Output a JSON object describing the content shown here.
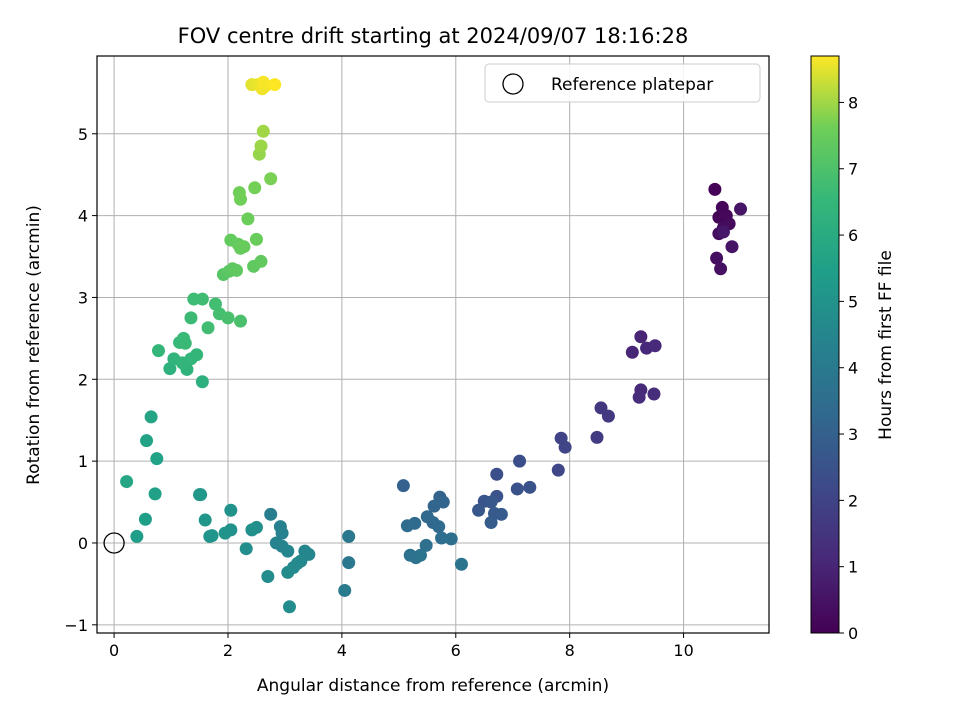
{
  "chart_data": {
    "type": "scatter",
    "title": "FOV centre drift starting at 2024/09/07 18:16:28",
    "xlabel": "Angular distance from reference (arcmin)",
    "ylabel": "Rotation from reference (arcmin)",
    "xlim": [
      -0.3,
      11.5
    ],
    "ylim": [
      -1.1,
      5.95
    ],
    "xticks": [
      0,
      2,
      4,
      6,
      8,
      10
    ],
    "yticks": [
      -1,
      0,
      1,
      2,
      3,
      4,
      5
    ],
    "grid": true,
    "colormap": "viridis",
    "legend": {
      "label": "Reference platepar",
      "position": "top-right"
    },
    "reference_point": {
      "x": 0,
      "y": 0
    },
    "colorbar": {
      "label": "Hours from first FF file",
      "range": [
        0,
        8.7
      ],
      "ticks": [
        0,
        1,
        2,
        3,
        4,
        5,
        6,
        7,
        8
      ]
    },
    "points": [
      {
        "x": 10.55,
        "y": 4.32,
        "c": 0.05
      },
      {
        "x": 10.62,
        "y": 3.98,
        "c": 0.1
      },
      {
        "x": 10.68,
        "y": 4.1,
        "c": 0.15
      },
      {
        "x": 10.75,
        "y": 4.0,
        "c": 0.2
      },
      {
        "x": 10.8,
        "y": 3.9,
        "c": 0.25
      },
      {
        "x": 10.7,
        "y": 3.85,
        "c": 0.3
      },
      {
        "x": 10.62,
        "y": 3.78,
        "c": 0.35
      },
      {
        "x": 10.58,
        "y": 3.48,
        "c": 0.4
      },
      {
        "x": 10.65,
        "y": 3.35,
        "c": 0.45
      },
      {
        "x": 10.85,
        "y": 3.62,
        "c": 0.5
      },
      {
        "x": 11.0,
        "y": 4.08,
        "c": 0.55
      },
      {
        "x": 10.7,
        "y": 3.8,
        "c": 0.6
      },
      {
        "x": 9.25,
        "y": 2.52,
        "c": 1.0
      },
      {
        "x": 9.1,
        "y": 2.33,
        "c": 1.05
      },
      {
        "x": 9.35,
        "y": 2.38,
        "c": 1.1
      },
      {
        "x": 9.5,
        "y": 2.41,
        "c": 1.15
      },
      {
        "x": 9.25,
        "y": 1.87,
        "c": 1.2
      },
      {
        "x": 9.22,
        "y": 1.78,
        "c": 1.25
      },
      {
        "x": 9.48,
        "y": 1.82,
        "c": 1.3
      },
      {
        "x": 8.55,
        "y": 1.65,
        "c": 1.6
      },
      {
        "x": 8.68,
        "y": 1.55,
        "c": 1.65
      },
      {
        "x": 8.48,
        "y": 1.29,
        "c": 1.7
      },
      {
        "x": 7.85,
        "y": 1.28,
        "c": 2.0
      },
      {
        "x": 7.92,
        "y": 1.17,
        "c": 2.05
      },
      {
        "x": 7.8,
        "y": 0.89,
        "c": 2.1
      },
      {
        "x": 7.12,
        "y": 1.0,
        "c": 2.35
      },
      {
        "x": 6.72,
        "y": 0.84,
        "c": 2.4
      },
      {
        "x": 7.08,
        "y": 0.66,
        "c": 2.45
      },
      {
        "x": 7.3,
        "y": 0.68,
        "c": 2.5
      },
      {
        "x": 6.72,
        "y": 0.57,
        "c": 2.55
      },
      {
        "x": 6.5,
        "y": 0.51,
        "c": 2.6
      },
      {
        "x": 6.62,
        "y": 0.5,
        "c": 2.65
      },
      {
        "x": 6.4,
        "y": 0.4,
        "c": 2.7
      },
      {
        "x": 6.68,
        "y": 0.36,
        "c": 2.75
      },
      {
        "x": 6.8,
        "y": 0.35,
        "c": 2.8
      },
      {
        "x": 6.62,
        "y": 0.25,
        "c": 2.85
      },
      {
        "x": 5.08,
        "y": 0.7,
        "c": 3.0
      },
      {
        "x": 5.72,
        "y": 0.56,
        "c": 3.1
      },
      {
        "x": 5.78,
        "y": 0.5,
        "c": 3.15
      },
      {
        "x": 5.62,
        "y": 0.45,
        "c": 3.2
      },
      {
        "x": 5.5,
        "y": 0.32,
        "c": 3.25
      },
      {
        "x": 5.6,
        "y": 0.25,
        "c": 3.3
      },
      {
        "x": 5.7,
        "y": 0.2,
        "c": 3.35
      },
      {
        "x": 5.28,
        "y": 0.24,
        "c": 3.4
      },
      {
        "x": 5.15,
        "y": 0.21,
        "c": 3.45
      },
      {
        "x": 5.75,
        "y": 0.06,
        "c": 3.5
      },
      {
        "x": 5.92,
        "y": 0.05,
        "c": 3.55
      },
      {
        "x": 5.48,
        "y": -0.03,
        "c": 3.6
      },
      {
        "x": 5.2,
        "y": -0.15,
        "c": 3.65
      },
      {
        "x": 5.3,
        "y": -0.18,
        "c": 3.7
      },
      {
        "x": 5.38,
        "y": -0.15,
        "c": 3.72
      },
      {
        "x": 6.1,
        "y": -0.26,
        "c": 3.75
      },
      {
        "x": 4.12,
        "y": 0.08,
        "c": 3.9
      },
      {
        "x": 4.12,
        "y": -0.24,
        "c": 3.95
      },
      {
        "x": 4.05,
        "y": -0.58,
        "c": 4.0
      },
      {
        "x": 2.75,
        "y": 0.35,
        "c": 4.2
      },
      {
        "x": 2.92,
        "y": 0.2,
        "c": 4.25
      },
      {
        "x": 2.95,
        "y": 0.12,
        "c": 4.3
      },
      {
        "x": 2.85,
        "y": 0.0,
        "c": 4.35
      },
      {
        "x": 2.95,
        "y": -0.04,
        "c": 4.4
      },
      {
        "x": 3.05,
        "y": -0.1,
        "c": 4.45
      },
      {
        "x": 3.35,
        "y": -0.1,
        "c": 4.5
      },
      {
        "x": 3.42,
        "y": -0.14,
        "c": 4.55
      },
      {
        "x": 3.22,
        "y": -0.25,
        "c": 4.6
      },
      {
        "x": 3.28,
        "y": -0.22,
        "c": 4.62
      },
      {
        "x": 3.15,
        "y": -0.3,
        "c": 4.65
      },
      {
        "x": 3.05,
        "y": -0.36,
        "c": 4.7
      },
      {
        "x": 2.7,
        "y": -0.41,
        "c": 4.72
      },
      {
        "x": 3.08,
        "y": -0.78,
        "c": 4.75
      },
      {
        "x": 2.32,
        "y": -0.07,
        "c": 4.8
      },
      {
        "x": 2.5,
        "y": 0.19,
        "c": 4.85
      },
      {
        "x": 2.42,
        "y": 0.16,
        "c": 4.9
      },
      {
        "x": 2.05,
        "y": 0.16,
        "c": 4.95
      },
      {
        "x": 1.95,
        "y": 0.12,
        "c": 5.0
      },
      {
        "x": 2.05,
        "y": 0.4,
        "c": 5.0
      },
      {
        "x": 1.68,
        "y": 0.08,
        "c": 5.05
      },
      {
        "x": 1.72,
        "y": 0.09,
        "c": 5.1
      },
      {
        "x": 1.6,
        "y": 0.28,
        "c": 5.12
      },
      {
        "x": 1.52,
        "y": 0.59,
        "c": 5.15
      },
      {
        "x": 1.5,
        "y": 0.59,
        "c": 5.2
      },
      {
        "x": 0.4,
        "y": 0.08,
        "c": 5.45
      },
      {
        "x": 0.55,
        "y": 0.29,
        "c": 5.5
      },
      {
        "x": 0.72,
        "y": 0.6,
        "c": 5.55
      },
      {
        "x": 0.75,
        "y": 1.03,
        "c": 5.6
      },
      {
        "x": 0.57,
        "y": 1.25,
        "c": 5.65
      },
      {
        "x": 0.65,
        "y": 1.54,
        "c": 5.7
      },
      {
        "x": 0.22,
        "y": 0.75,
        "c": 5.8
      },
      {
        "x": 1.55,
        "y": 1.97,
        "c": 6.2
      },
      {
        "x": 0.98,
        "y": 2.13,
        "c": 6.25
      },
      {
        "x": 1.28,
        "y": 2.12,
        "c": 6.3
      },
      {
        "x": 1.05,
        "y": 2.25,
        "c": 6.35
      },
      {
        "x": 1.2,
        "y": 2.2,
        "c": 6.4
      },
      {
        "x": 1.35,
        "y": 2.25,
        "c": 6.42
      },
      {
        "x": 1.45,
        "y": 2.3,
        "c": 6.45
      },
      {
        "x": 0.78,
        "y": 2.35,
        "c": 6.5
      },
      {
        "x": 1.15,
        "y": 2.45,
        "c": 6.55
      },
      {
        "x": 1.22,
        "y": 2.5,
        "c": 6.6
      },
      {
        "x": 1.25,
        "y": 2.44,
        "c": 6.62
      },
      {
        "x": 1.35,
        "y": 2.75,
        "c": 6.65
      },
      {
        "x": 1.4,
        "y": 2.98,
        "c": 6.7
      },
      {
        "x": 1.55,
        "y": 2.98,
        "c": 6.72
      },
      {
        "x": 1.65,
        "y": 2.63,
        "c": 6.75
      },
      {
        "x": 1.78,
        "y": 2.92,
        "c": 6.8
      },
      {
        "x": 1.85,
        "y": 2.8,
        "c": 6.85
      },
      {
        "x": 2.0,
        "y": 2.75,
        "c": 6.9
      },
      {
        "x": 2.22,
        "y": 2.71,
        "c": 6.95
      },
      {
        "x": 1.92,
        "y": 3.28,
        "c": 7.2
      },
      {
        "x": 2.02,
        "y": 3.32,
        "c": 7.25
      },
      {
        "x": 2.08,
        "y": 3.35,
        "c": 7.3
      },
      {
        "x": 2.15,
        "y": 3.33,
        "c": 7.32
      },
      {
        "x": 2.45,
        "y": 3.38,
        "c": 7.35
      },
      {
        "x": 2.58,
        "y": 3.44,
        "c": 7.38
      },
      {
        "x": 2.05,
        "y": 3.7,
        "c": 7.4
      },
      {
        "x": 2.18,
        "y": 3.65,
        "c": 7.42
      },
      {
        "x": 2.22,
        "y": 3.6,
        "c": 7.45
      },
      {
        "x": 2.28,
        "y": 3.62,
        "c": 7.48
      },
      {
        "x": 2.5,
        "y": 3.71,
        "c": 7.5
      },
      {
        "x": 2.35,
        "y": 3.96,
        "c": 7.55
      },
      {
        "x": 2.22,
        "y": 4.2,
        "c": 7.6
      },
      {
        "x": 2.2,
        "y": 4.28,
        "c": 7.62
      },
      {
        "x": 2.47,
        "y": 4.34,
        "c": 7.65
      },
      {
        "x": 2.75,
        "y": 4.45,
        "c": 7.7
      },
      {
        "x": 2.55,
        "y": 4.75,
        "c": 7.9
      },
      {
        "x": 2.58,
        "y": 4.85,
        "c": 7.95
      },
      {
        "x": 2.62,
        "y": 5.03,
        "c": 8.0
      },
      {
        "x": 2.42,
        "y": 5.6,
        "c": 8.5
      },
      {
        "x": 2.52,
        "y": 5.6,
        "c": 8.55
      },
      {
        "x": 2.6,
        "y": 5.55,
        "c": 8.6
      },
      {
        "x": 2.65,
        "y": 5.58,
        "c": 8.62
      },
      {
        "x": 2.62,
        "y": 5.63,
        "c": 8.65
      },
      {
        "x": 2.82,
        "y": 5.6,
        "c": 8.7
      }
    ]
  }
}
